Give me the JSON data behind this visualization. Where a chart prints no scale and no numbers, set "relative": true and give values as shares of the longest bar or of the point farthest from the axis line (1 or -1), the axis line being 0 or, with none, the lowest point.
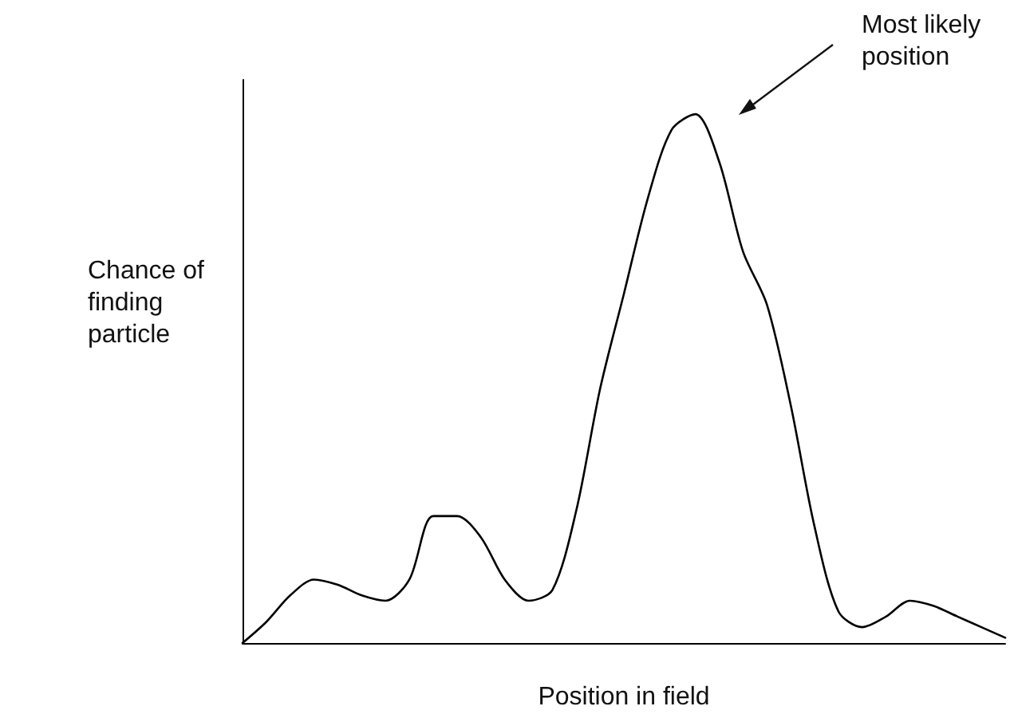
{
  "chart_data": {
    "type": "line",
    "relative": true,
    "xlabel": "Position in field",
    "ylabel": "Chance of finding particle",
    "annotations": [
      "Most likely position"
    ],
    "categories": [
      null,
      null,
      null,
      null,
      null,
      null,
      null,
      null,
      null,
      null,
      null,
      null,
      null,
      null,
      null,
      null,
      null,
      null,
      null,
      null,
      null,
      null,
      null,
      null,
      null,
      null,
      null,
      null,
      null,
      null,
      null,
      null,
      null
    ],
    "series": [
      {
        "color": "#000000",
        "values": [
          0,
          0.04,
          0.09,
          0.12,
          0.11,
          0.09,
          0.08,
          0.12,
          0.24,
          0.24,
          0.2,
          0.12,
          0.08,
          0.1,
          0.25,
          0.48,
          0.66,
          0.84,
          0.97,
          1,
          0.91,
          0.74,
          0.64,
          0.45,
          0.22,
          0.06,
          0.03,
          0.05,
          0.08,
          0.07,
          0.05,
          0.03,
          0.01
        ]
      }
    ],
    "marker": "none",
    "line_style": "solid"
  }
}
